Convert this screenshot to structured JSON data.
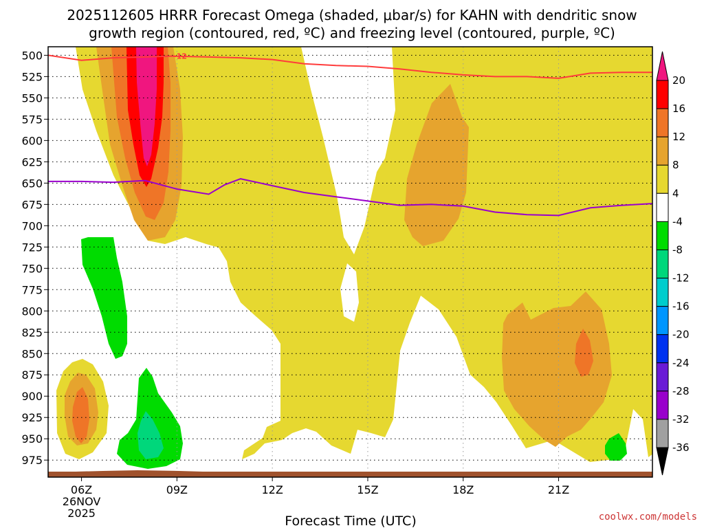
{
  "chart_data": {
    "type": "contour",
    "title_line1": "2025112605 HRRR Forecast Omega (shaded, μbar/s) for KAHN with dendritic snow",
    "title_line2": "growth region (contoured, red, ºC) and freezing level (contoured, purple, ºC)",
    "xlabel": "Forecast Time (UTC)",
    "credit": "coolwx.com/models",
    "x_axis": {
      "hours_range": [
        4.95,
        23.95
      ],
      "ticks": [
        {
          "hour": 6,
          "lines": [
            "06Z",
            "26NOV",
            "2025"
          ]
        },
        {
          "hour": 9,
          "lines": [
            "09Z"
          ]
        },
        {
          "hour": 12,
          "lines": [
            "12Z"
          ]
        },
        {
          "hour": 15,
          "lines": [
            "15Z"
          ]
        },
        {
          "hour": 18,
          "lines": [
            "18Z"
          ]
        },
        {
          "hour": 21,
          "lines": [
            "21Z"
          ]
        }
      ],
      "dotted_grid_hours": [
        9,
        12,
        15,
        18,
        21
      ]
    },
    "y_axis": {
      "pressure_levels_hpa": [
        500,
        525,
        550,
        575,
        600,
        625,
        650,
        675,
        700,
        725,
        750,
        775,
        800,
        825,
        850,
        875,
        900,
        925,
        950,
        975
      ],
      "range_hpa": [
        490,
        995
      ]
    },
    "colorbar": {
      "labels": [
        "20",
        "16",
        "12",
        "8",
        "4",
        "-4",
        "-8",
        "-12",
        "-16",
        "-20",
        "-24",
        "-28",
        "-32",
        "-36"
      ],
      "colors": [
        "#ff0000",
        "#ef7527",
        "#e6a42e",
        "#e6d830",
        "#ffffff",
        "#00dc00",
        "#00d77b",
        "#00cdcd",
        "#0096ff",
        "#0032f0",
        "#6a1bd6",
        "#9900cc",
        "#a0a0a0"
      ],
      "top_arrow_color": "#f0167f",
      "bottom_arrow_color": "#000000"
    },
    "colors": {
      "omega_4_8": "#e6d830",
      "omega_8_12": "#e6a42e",
      "omega_12_16": "#ef7527",
      "omega_16_20": "#ff0000",
      "omega_gt_20": "#f0167f",
      "omega_m4_m8": "#00dc00",
      "omega_m8_m12": "#00d77b",
      "dgz_contour": "#ff3b3b",
      "freezing_level": "#9900cc",
      "terrain": "#a0522d",
      "credit": "#cc3333"
    },
    "dgz_contour_label": "-12",
    "dgz_contour_points": [
      [
        4.95,
        500
      ],
      [
        6,
        506
      ],
      [
        7,
        503
      ],
      [
        8,
        502
      ],
      [
        8.8,
        501
      ],
      [
        10,
        502
      ],
      [
        11,
        503
      ],
      [
        12,
        505
      ],
      [
        13,
        510
      ],
      [
        14,
        512
      ],
      [
        15,
        513
      ],
      [
        16,
        516
      ],
      [
        17,
        520
      ],
      [
        18,
        523
      ],
      [
        19,
        525
      ],
      [
        20,
        525
      ],
      [
        21,
        527
      ],
      [
        22,
        521
      ],
      [
        23,
        520
      ],
      [
        23.95,
        520
      ]
    ],
    "freezing_level_points": [
      [
        4.95,
        648
      ],
      [
        6,
        648
      ],
      [
        7,
        649
      ],
      [
        8,
        647
      ],
      [
        9,
        657
      ],
      [
        10,
        663
      ],
      [
        10.5,
        652
      ],
      [
        11,
        645
      ],
      [
        12,
        653
      ],
      [
        13,
        661
      ],
      [
        14,
        666
      ],
      [
        15,
        671
      ],
      [
        16,
        676
      ],
      [
        17,
        675
      ],
      [
        18,
        677
      ],
      [
        19,
        684
      ],
      [
        20,
        687
      ],
      [
        21,
        688
      ],
      [
        22,
        679
      ],
      [
        23,
        676
      ],
      [
        23.95,
        674
      ]
    ]
  }
}
